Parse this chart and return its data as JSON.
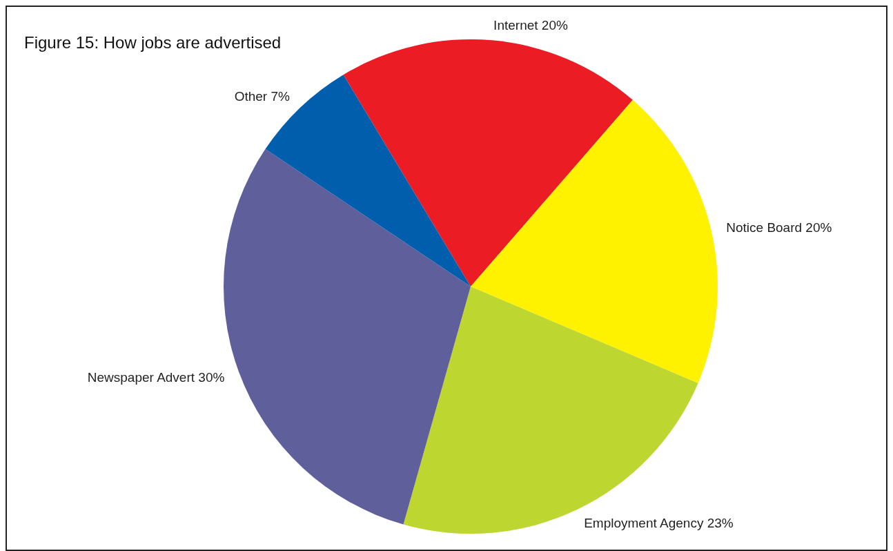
{
  "chart_data": {
    "type": "pie",
    "title": "Figure 15: How jobs are advertised",
    "categories": [
      "Internet",
      "Notice Board",
      "Employment Agency",
      "Newspaper Advert",
      "Other"
    ],
    "values": [
      20,
      20,
      23,
      30,
      7
    ],
    "value_labels": [
      "20%",
      "20%",
      "23%",
      "30%",
      "7%"
    ],
    "colors": [
      "#ec1c24",
      "#fff200",
      "#bed630",
      "#5f5f9b",
      "#005eac"
    ],
    "legend": false
  }
}
